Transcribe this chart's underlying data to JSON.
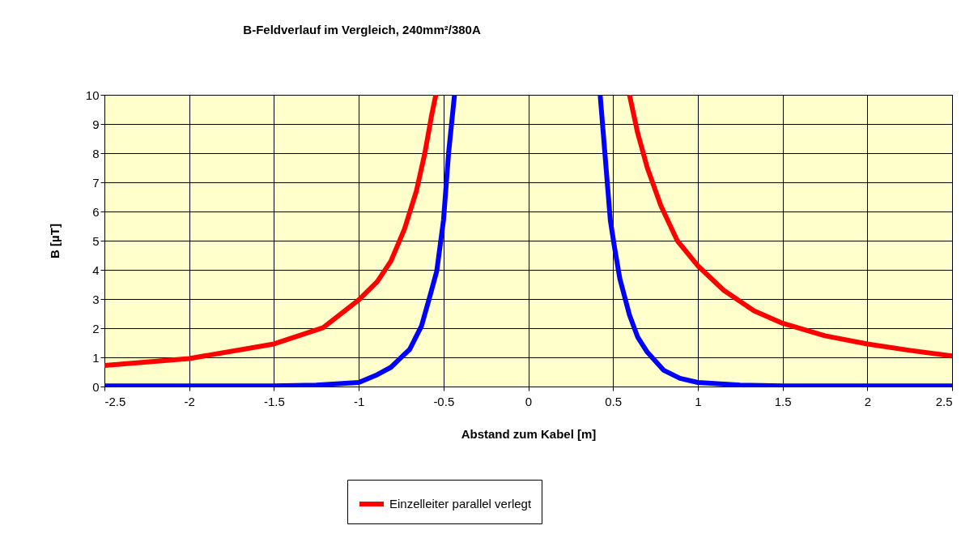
{
  "chart_data": {
    "type": "line",
    "title": "B-Feldverlauf im Vergleich, 240mm²/380A",
    "xlabel": "Abstand zum Kabel [m]",
    "ylabel": "B [µT]",
    "xlim": [
      -2.5,
      2.5
    ],
    "xticks": [
      -2.5,
      -2,
      -1.5,
      -1,
      -0.5,
      0,
      0.5,
      1,
      1.5,
      2,
      2.5
    ],
    "ylim": [
      0,
      10
    ],
    "yticks": [
      0,
      1,
      2,
      3,
      4,
      5,
      6,
      7,
      8,
      9,
      10
    ],
    "grid": true,
    "legend": "bottom",
    "series": [
      {
        "color": "#0000ff",
        "x": [
          -2.5,
          -2,
          -1.5,
          -1.25,
          -1,
          -0.9,
          -0.81,
          -0.76,
          -0.7,
          -0.63,
          -0.58,
          -0.54,
          -0.5,
          -0.47,
          -0.435,
          0,
          0.424,
          0.452,
          0.484,
          0.508,
          0.54,
          0.597,
          0.645,
          0.702,
          0.798,
          0.895,
          1,
          1.25,
          1.5,
          2,
          2.5
        ],
        "values": [
          0.02,
          0.02,
          0.02,
          0.05,
          0.14,
          0.38,
          0.66,
          0.94,
          1.27,
          2.07,
          3.1,
          3.95,
          5.7,
          8,
          10,
          null,
          10,
          8,
          5.7,
          4.8,
          3.7,
          2.45,
          1.7,
          1.18,
          0.56,
          0.28,
          0.14,
          0.05,
          0.02,
          0.02,
          0.02
        ]
      },
      {
        "name": "Einzelleiter parallel verlegt",
        "color": "#ff0000",
        "x": [
          -2.5,
          -2,
          -1.5,
          -1.21,
          -1,
          -0.89,
          -0.81,
          -0.73,
          -0.66,
          -0.61,
          -0.57,
          -0.545,
          0,
          0.597,
          0.645,
          0.702,
          0.782,
          0.879,
          1,
          1.153,
          1.331,
          1.5,
          1.75,
          2,
          2.25,
          2.5
        ],
        "values": [
          0.72,
          0.96,
          1.46,
          2.02,
          2.97,
          3.6,
          4.3,
          5.4,
          6.7,
          8,
          9.3,
          10,
          null,
          10,
          8.7,
          7.5,
          6.2,
          5,
          4.14,
          3.3,
          2.6,
          2.17,
          1.74,
          1.46,
          1.24,
          1.05
        ]
      }
    ]
  }
}
